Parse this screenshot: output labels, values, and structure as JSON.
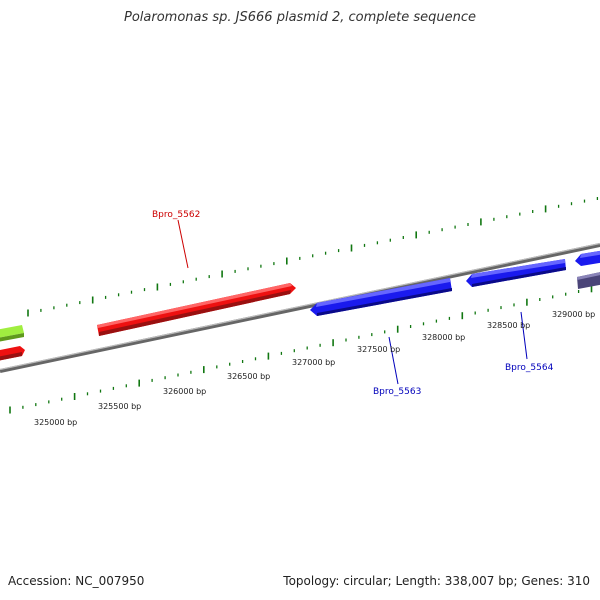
{
  "title": "Polaromonas sp. JS666 plasmid 2, complete sequence",
  "footer": {
    "accession": "Accession: NC_007950",
    "summary": "Topology: circular; Length: 338,007 bp; Genes: 310"
  },
  "colors": {
    "forward_gene": "#ee1111",
    "reverse_gene": "#1a1aee",
    "other_reverse_gene": "#4a4478",
    "forward_gene_alt": "#8ee030",
    "backbone": "#888888",
    "ticks": "#117711",
    "label_forward": "#cc0000",
    "label_reverse": "#0000bb"
  },
  "ticks": [
    "325000 bp",
    "325500 bp",
    "326000 bp",
    "326500 bp",
    "327000 bp",
    "327500 bp",
    "328000 bp",
    "328500 bp",
    "329000 bp"
  ],
  "gene_labels": [
    {
      "name": "Bpro_5562",
      "strand": "forward"
    },
    {
      "name": "Bpro_5563",
      "strand": "reverse"
    },
    {
      "name": "Bpro_5564",
      "strand": "reverse"
    }
  ]
}
